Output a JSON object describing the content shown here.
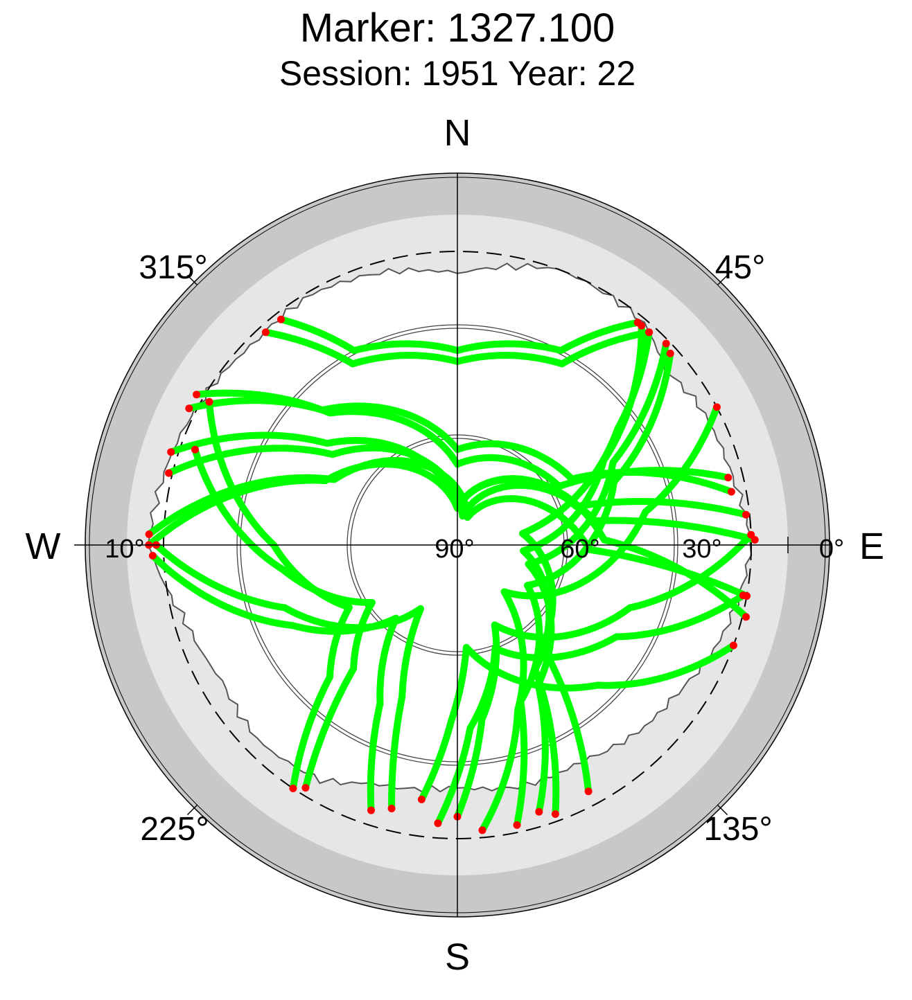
{
  "title": "Marker: 1327.100",
  "subtitle": "Session: 1951 Year: 22",
  "compass": {
    "north": "N",
    "east": "E",
    "south": "S",
    "west": "W"
  },
  "azimuth_labels": {
    "az45": "45°",
    "az135": "135°",
    "az225": "225°",
    "az315": "315°"
  },
  "elevation_labels": {
    "e0": "0°",
    "e10": "10°",
    "e30": "30°",
    "e60": "60°",
    "e90": "90°"
  },
  "colors": {
    "track": "#00ff00",
    "endpoint": "#ff0000",
    "outer_ring": "#c8c8c8",
    "horizon_fill": "#e6e6e6",
    "cutoff_dash": "#000000"
  },
  "chart_data": {
    "type": "scatter",
    "projection": "polar-azimuth-elevation",
    "elevation_range": [
      0,
      90
    ],
    "elevation_rings": [
      0,
      10,
      30,
      60,
      90
    ],
    "azimuth_ticks": [
      0,
      45,
      90,
      135,
      180,
      225,
      270,
      315
    ],
    "elevation_cutoff": 10,
    "grid": true,
    "series": [
      {
        "values": [
          [
            318,
            12
          ],
          [
            330,
            33
          ],
          [
            0,
            40
          ],
          [
            30,
            33
          ],
          [
            42,
            12
          ]
        ]
      },
      {
        "values": [
          [
            322,
            12
          ],
          [
            332,
            30
          ],
          [
            0,
            37
          ],
          [
            28,
            30
          ],
          [
            39,
            12
          ]
        ]
      },
      {
        "values": [
          [
            300,
            8
          ],
          [
            316,
            40
          ],
          [
            0,
            68
          ],
          [
            60,
            58
          ],
          [
            76,
            14
          ]
        ]
      },
      {
        "values": [
          [
            297,
            8
          ],
          [
            315,
            38
          ],
          [
            0,
            64
          ],
          [
            60,
            54
          ],
          [
            79,
            14
          ]
        ]
      },
      {
        "values": [
          [
            288,
            8
          ],
          [
            308,
            45
          ],
          [
            0,
            80
          ],
          [
            72,
            56
          ],
          [
            84,
            11
          ]
        ]
      },
      {
        "values": [
          [
            284,
            9
          ],
          [
            306,
            48
          ],
          [
            10,
            82
          ],
          [
            80,
            52
          ],
          [
            89,
            9
          ]
        ]
      },
      {
        "values": [
          [
            272,
            6
          ],
          [
            298,
            52
          ],
          [
            20,
            82
          ],
          [
            92,
            54
          ],
          [
            100,
            10
          ]
        ]
      },
      {
        "values": [
          [
            270,
            6
          ],
          [
            296,
            50
          ],
          [
            0,
            80
          ],
          [
            88,
            50
          ],
          [
            104,
            9
          ]
        ]
      },
      {
        "values": [
          [
            42,
            12
          ],
          [
            54,
            36
          ],
          [
            80,
            72
          ],
          [
            140,
            54
          ],
          [
            152,
            14
          ]
        ]
      },
      {
        "values": [
          [
            40,
            12
          ],
          [
            60,
            44
          ],
          [
            95,
            72
          ],
          [
            148,
            50
          ],
          [
            160,
            12
          ]
        ]
      },
      {
        "values": [
          [
            46,
            11
          ],
          [
            62,
            42
          ],
          [
            105,
            70
          ],
          [
            150,
            46
          ],
          [
            163,
            14
          ]
        ]
      },
      {
        "values": [
          [
            48,
            12
          ],
          [
            68,
            44
          ],
          [
            120,
            68
          ],
          [
            158,
            44
          ],
          [
            168,
            12
          ]
        ]
      },
      {
        "values": [
          [
            62,
            10
          ],
          [
            80,
            38
          ],
          [
            135,
            72
          ],
          [
            160,
            42
          ],
          [
            175,
            12
          ]
        ]
      },
      {
        "values": [
          [
            270,
            8
          ],
          [
            250,
            40
          ],
          [
            210,
            70
          ],
          [
            200,
            46
          ],
          [
            194,
            16
          ]
        ]
      },
      {
        "values": [
          [
            268,
            7
          ],
          [
            244,
            40
          ],
          [
            220,
            64
          ],
          [
            206,
            42
          ],
          [
            198,
            14
          ]
        ]
      },
      {
        "values": [
          [
            290,
            14
          ],
          [
            262,
            42
          ],
          [
            236,
            62
          ],
          [
            220,
            46
          ],
          [
            212,
            12
          ]
        ]
      },
      {
        "values": [
          [
            300,
            12
          ],
          [
            270,
            40
          ],
          [
            240,
            56
          ],
          [
            224,
            40
          ],
          [
            214,
            10
          ]
        ]
      },
      {
        "values": [
          [
            88,
            10
          ],
          [
            110,
            40
          ],
          [
            155,
            66
          ],
          [
            172,
            42
          ],
          [
            180,
            16
          ]
        ]
      },
      {
        "values": [
          [
            100,
            11
          ],
          [
            120,
            40
          ],
          [
            160,
            60
          ],
          [
            176,
            40
          ],
          [
            184,
            14
          ]
        ]
      },
      {
        "values": [
          [
            110,
            10
          ],
          [
            135,
            36
          ],
          [
            175,
            62
          ],
          [
            182,
            42
          ],
          [
            188,
            20
          ]
        ]
      }
    ],
    "horizon_mask": {
      "note": "local horizon obstruction profile (azimuth in degrees, elevation in degrees)",
      "values": [
        [
          0,
          16
        ],
        [
          20,
          10
        ],
        [
          40,
          11
        ],
        [
          50,
          16
        ],
        [
          60,
          14
        ],
        [
          75,
          13
        ],
        [
          90,
          10
        ],
        [
          110,
          14
        ],
        [
          125,
          18
        ],
        [
          135,
          19
        ],
        [
          150,
          22
        ],
        [
          165,
          22
        ],
        [
          180,
          24
        ],
        [
          200,
          21
        ],
        [
          210,
          16
        ],
        [
          225,
          14
        ],
        [
          240,
          16
        ],
        [
          255,
          13
        ],
        [
          270,
          6
        ],
        [
          285,
          8
        ],
        [
          300,
          10
        ],
        [
          315,
          12
        ],
        [
          330,
          11
        ],
        [
          345,
          13
        ],
        [
          360,
          16
        ]
      ]
    }
  }
}
